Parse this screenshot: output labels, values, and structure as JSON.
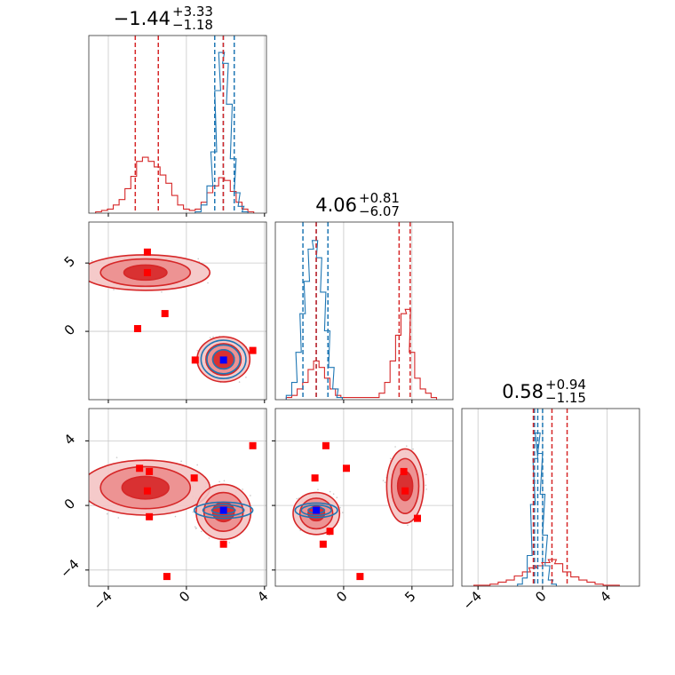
{
  "chart_data": {
    "type": "corner",
    "colors": {
      "red": "#d62728",
      "blue": "#1f77b4",
      "marker_red": "#ff0000",
      "marker_blue": "#0000ff",
      "grid": "#c8c8c8"
    },
    "grid": true,
    "parameters": [
      {
        "title": {
          "value": "−1.44",
          "upper": "+3.33",
          "lower": "−1.18"
        },
        "range": [
          -5,
          4.1
        ],
        "ticks": [
          -4,
          0,
          4
        ],
        "tick_labels": [
          "−4",
          "0",
          "4"
        ],
        "red_quantiles": [
          -2.62,
          -1.44,
          1.89
        ],
        "blue_quantiles": [
          1.45,
          1.89,
          2.45
        ],
        "red_hist": [
          [
            -4.5,
            1
          ],
          [
            -4.2,
            2
          ],
          [
            -3.9,
            3
          ],
          [
            -3.6,
            6
          ],
          [
            -3.3,
            10
          ],
          [
            -3.0,
            18
          ],
          [
            -2.7,
            27
          ],
          [
            -2.4,
            38
          ],
          [
            -2.1,
            41
          ],
          [
            -1.8,
            38
          ],
          [
            -1.5,
            34
          ],
          [
            -1.2,
            28
          ],
          [
            -0.9,
            22
          ],
          [
            -0.6,
            13
          ],
          [
            -0.3,
            6
          ],
          [
            0.0,
            3
          ],
          [
            0.3,
            2
          ],
          [
            0.6,
            3
          ],
          [
            0.9,
            8
          ],
          [
            1.2,
            15
          ],
          [
            1.5,
            20
          ],
          [
            1.8,
            26
          ],
          [
            2.1,
            24
          ],
          [
            2.4,
            16
          ],
          [
            2.7,
            8
          ],
          [
            3.0,
            3
          ],
          [
            3.3,
            1
          ]
        ],
        "blue_hist": [
          [
            0.6,
            1
          ],
          [
            0.9,
            6
          ],
          [
            1.2,
            20
          ],
          [
            1.4,
            45
          ],
          [
            1.6,
            90
          ],
          [
            1.8,
            118
          ],
          [
            2.0,
            110
          ],
          [
            2.2,
            80
          ],
          [
            2.4,
            40
          ],
          [
            2.6,
            15
          ],
          [
            2.8,
            5
          ],
          [
            3.0,
            1
          ]
        ],
        "blue_hist_max": 120,
        "red_hist_max": 120
      },
      {
        "title": {
          "value": "4.06",
          "upper": "+0.81",
          "lower": "−6.07"
        },
        "range": [
          -5,
          8
        ],
        "ticks": [
          0,
          5
        ],
        "tick_labels": [
          "0",
          "5"
        ],
        "red_quantiles": [
          -2.01,
          4.06,
          4.87
        ],
        "blue_quantiles": [
          -2.98,
          -2.0,
          -1.15
        ],
        "red_hist": [
          [
            -4.0,
            1
          ],
          [
            -3.6,
            2
          ],
          [
            -3.2,
            5
          ],
          [
            -2.8,
            8
          ],
          [
            -2.4,
            14
          ],
          [
            -2.0,
            18
          ],
          [
            -1.6,
            15
          ],
          [
            -1.2,
            10
          ],
          [
            -0.8,
            5
          ],
          [
            -0.4,
            2
          ],
          [
            0.0,
            1
          ],
          [
            0.4,
            1
          ],
          [
            2.4,
            1
          ],
          [
            2.8,
            3
          ],
          [
            3.2,
            8
          ],
          [
            3.6,
            18
          ],
          [
            4.0,
            30
          ],
          [
            4.4,
            40
          ],
          [
            4.7,
            42
          ],
          [
            5.0,
            22
          ],
          [
            5.4,
            10
          ],
          [
            5.8,
            5
          ],
          [
            6.2,
            3
          ],
          [
            6.6,
            1
          ]
        ],
        "blue_hist": [
          [
            -4.0,
            2
          ],
          [
            -3.6,
            8
          ],
          [
            -3.3,
            22
          ],
          [
            -3.0,
            40
          ],
          [
            -2.7,
            55
          ],
          [
            -2.4,
            70
          ],
          [
            -2.1,
            74
          ],
          [
            -1.8,
            66
          ],
          [
            -1.5,
            50
          ],
          [
            -1.2,
            32
          ],
          [
            -0.9,
            15
          ],
          [
            -0.6,
            5
          ],
          [
            -0.3,
            1
          ]
        ],
        "blue_hist_max": 76,
        "red_hist_max": 76
      },
      {
        "title": {
          "value": "0.58",
          "upper": "+0.94",
          "lower": "−1.15"
        },
        "range": [
          -5,
          6
        ],
        "ticks": [
          -4,
          0,
          4
        ],
        "tick_labels": [
          "−4",
          "0",
          "4"
        ],
        "red_quantiles": [
          -0.57,
          0.58,
          1.52
        ],
        "blue_quantiles": [
          -0.5,
          -0.3,
          0.0
        ],
        "red_hist": [
          [
            -4.0,
            1
          ],
          [
            -3.5,
            1
          ],
          [
            -3.0,
            2
          ],
          [
            -2.5,
            4
          ],
          [
            -2.0,
            6
          ],
          [
            -1.5,
            10
          ],
          [
            -1.0,
            14
          ],
          [
            -0.6,
            18
          ],
          [
            -0.2,
            20
          ],
          [
            0.2,
            23
          ],
          [
            0.6,
            26
          ],
          [
            1.0,
            22
          ],
          [
            1.5,
            14
          ],
          [
            2.0,
            9
          ],
          [
            2.5,
            6
          ],
          [
            3.0,
            4
          ],
          [
            3.5,
            2
          ],
          [
            4.0,
            1
          ],
          [
            4.5,
            1
          ]
        ],
        "blue_hist": [
          [
            -1.4,
            2
          ],
          [
            -1.1,
            8
          ],
          [
            -0.8,
            30
          ],
          [
            -0.6,
            80
          ],
          [
            -0.45,
            125
          ],
          [
            -0.3,
            150
          ],
          [
            -0.15,
            130
          ],
          [
            0.0,
            90
          ],
          [
            0.15,
            50
          ],
          [
            0.3,
            20
          ],
          [
            0.5,
            6
          ],
          [
            0.7,
            2
          ]
        ],
        "blue_hist_max": 160,
        "red_hist_max": 160
      }
    ],
    "joint": [
      {
        "row": 1,
        "col": 0,
        "red_blobs": [
          {
            "cx": -2.1,
            "cy": 4.3,
            "rx": [
              1.1,
              2.3,
              3.3
            ],
            "ry": [
              0.55,
              1.0,
              1.3
            ]
          },
          {
            "cx": 1.9,
            "cy": -2.05,
            "rx": [
              0.55,
              0.9,
              1.35
            ],
            "ry": [
              0.7,
              1.15,
              1.65
            ]
          }
        ],
        "blue_blob": {
          "cx": 1.9,
          "cy": -2.05,
          "rx": [
            0.55,
            0.85,
            1.15
          ],
          "ry": [
            0.7,
            1.05,
            1.4
          ]
        },
        "red_markers": [
          [
            -2.0,
            5.8
          ],
          [
            -2.0,
            4.3
          ],
          [
            -1.1,
            1.3
          ],
          [
            -2.5,
            0.2
          ],
          [
            0.45,
            -2.1
          ],
          [
            3.4,
            -1.4
          ]
        ],
        "blue_markers": [
          [
            1.9,
            -2.1
          ]
        ]
      },
      {
        "row": 2,
        "col": 0,
        "red_blobs": [
          {
            "cx": -2.1,
            "cy": 1.1,
            "rx": [
              1.2,
              2.3,
              3.3
            ],
            "ry": [
              0.7,
              1.3,
              1.7
            ]
          },
          {
            "cx": 1.9,
            "cy": -0.4,
            "rx": [
              0.55,
              1.0,
              1.4
            ],
            "ry": [
              0.6,
              1.2,
              1.7
            ]
          }
        ],
        "blue_blob": {
          "cx": 1.9,
          "cy": -0.3,
          "rx": [
            0.6,
            1.05,
            1.5
          ],
          "ry": [
            0.2,
            0.35,
            0.5
          ]
        },
        "red_markers": [
          [
            -2.4,
            2.3
          ],
          [
            -1.9,
            2.1
          ],
          [
            -2.0,
            0.9
          ],
          [
            -1.9,
            -0.7
          ],
          [
            0.4,
            1.7
          ],
          [
            3.4,
            3.7
          ],
          [
            1.9,
            -2.4
          ],
          [
            -1.0,
            -4.4
          ]
        ],
        "blue_markers": [
          [
            1.9,
            -0.3
          ]
        ]
      },
      {
        "row": 2,
        "col": 1,
        "red_blobs": [
          {
            "cx": 4.5,
            "cy": 1.2,
            "rx": [
              0.55,
              1.0,
              1.35
            ],
            "ry": [
              0.9,
              1.7,
              2.3
            ]
          },
          {
            "cx": -2.0,
            "cy": -0.5,
            "rx": [
              0.6,
              1.2,
              1.7
            ],
            "ry": [
              0.45,
              0.95,
              1.3
            ]
          }
        ],
        "blue_blob": {
          "cx": -2.0,
          "cy": -0.3,
          "rx": [
            0.6,
            1.1,
            1.55
          ],
          "ry": [
            0.18,
            0.32,
            0.45
          ]
        },
        "red_markers": [
          [
            -1.3,
            3.7
          ],
          [
            0.2,
            2.3
          ],
          [
            -2.1,
            1.7
          ],
          [
            4.4,
            2.1
          ],
          [
            4.5,
            0.9
          ],
          [
            -1.0,
            -1.6
          ],
          [
            -1.5,
            -2.4
          ],
          [
            5.4,
            -0.8
          ],
          [
            1.2,
            -4.4
          ]
        ],
        "blue_markers": [
          [
            -2.0,
            -0.3
          ]
        ]
      }
    ]
  }
}
